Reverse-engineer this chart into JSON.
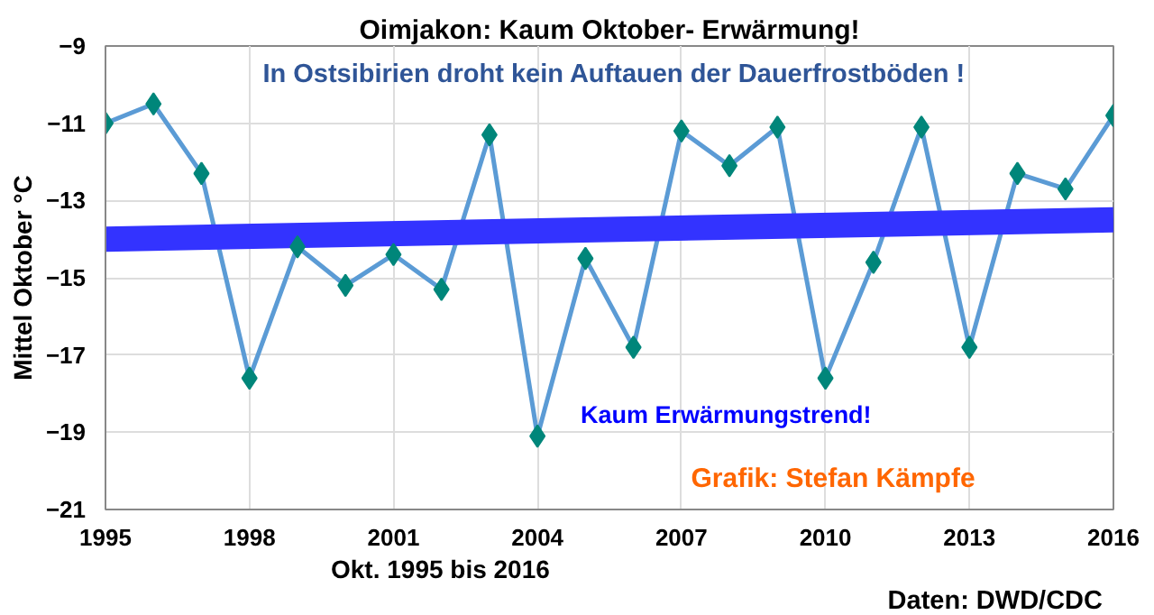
{
  "chart_data": {
    "type": "line",
    "title": "Oimjakon: Kaum Oktober- Erwärmung!",
    "subtitle": "In Ostsibirien droht kein Auftauen der Dauerfrostböden !",
    "xlabel": "Okt. 1995 bis 2016",
    "ylabel": "Mittel Oktober °C",
    "x": [
      1995,
      1996,
      1997,
      1998,
      1999,
      2000,
      2001,
      2002,
      2003,
      2004,
      2005,
      2006,
      2007,
      2008,
      2009,
      2010,
      2011,
      2012,
      2013,
      2014,
      2015,
      2016
    ],
    "series": [
      {
        "color": "#5b9bd5",
        "marker": "diamond",
        "values": [
          -11.0,
          -10.5,
          -12.3,
          -17.6,
          -14.2,
          -15.2,
          -14.4,
          -15.3,
          -11.3,
          -19.1,
          -14.5,
          -16.8,
          -11.2,
          -12.1,
          -11.1,
          -17.6,
          -14.6,
          -11.1,
          -16.8,
          -12.3,
          -12.7,
          -10.8
        ]
      },
      {
        "type": "line",
        "color": "#3333ff",
        "marker": "none",
        "x": [
          1995,
          2016
        ],
        "values": [
          -14.0,
          -13.5
        ]
      }
    ],
    "xlim": [
      1995,
      2016
    ],
    "ylim": [
      -21,
      -9
    ],
    "xticks": [
      1995,
      1998,
      2001,
      2004,
      2007,
      2010,
      2013,
      2016
    ],
    "yticks": [
      -9,
      -11,
      -13,
      -15,
      -17,
      -19,
      -21
    ],
    "grid": true,
    "annotations": [
      "Kaum Erwärmungstrend!",
      "Grafik: Stefan Kämpfe",
      "Daten: DWD/CDC"
    ]
  }
}
